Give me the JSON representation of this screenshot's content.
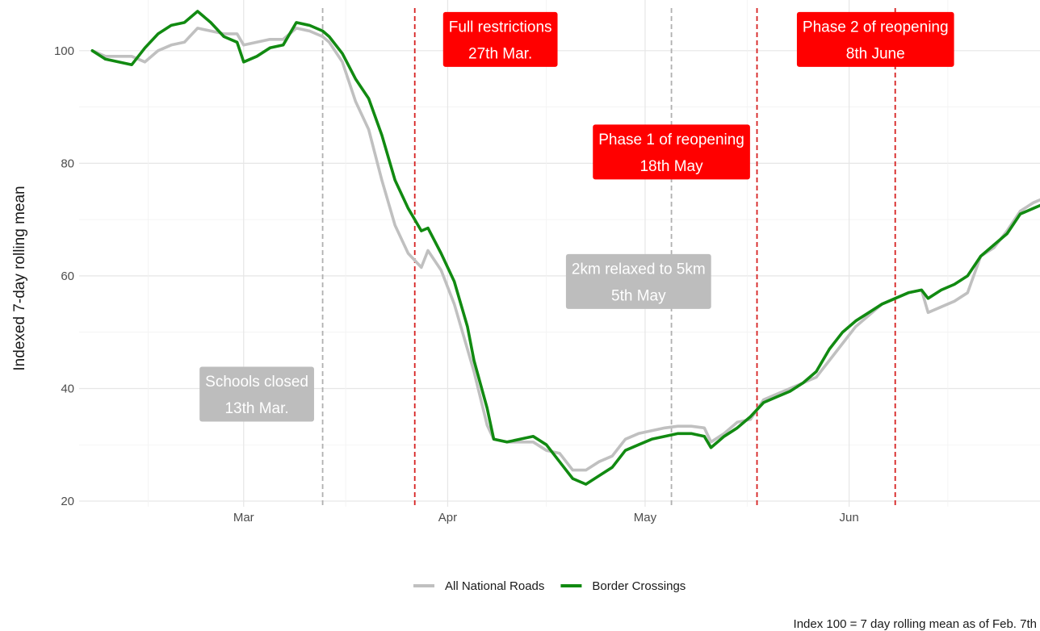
{
  "chart_data": {
    "type": "line",
    "title": "",
    "xlabel": "",
    "ylabel": "Indexed 7-day rolling mean",
    "caption": "Index 100 = 7 day rolling mean as of Feb. 7th",
    "xlim": [
      "2020-02-05",
      "2020-06-30"
    ],
    "ylim": [
      19,
      109
    ],
    "y_ticks": [
      20,
      40,
      60,
      80,
      100
    ],
    "x_ticks": [
      {
        "date": "2020-03-01",
        "label": "Mar"
      },
      {
        "date": "2020-04-01",
        "label": "Apr"
      },
      {
        "date": "2020-05-01",
        "label": "May"
      },
      {
        "date": "2020-06-01",
        "label": "Jun"
      }
    ],
    "grid": true,
    "legend_position": "bottom",
    "series": [
      {
        "name": "All National Roads",
        "color": "#c0c0c0",
        "points": [
          [
            "2020-02-07",
            100
          ],
          [
            "2020-02-09",
            99
          ],
          [
            "2020-02-11",
            99
          ],
          [
            "2020-02-13",
            99
          ],
          [
            "2020-02-15",
            98
          ],
          [
            "2020-02-17",
            100
          ],
          [
            "2020-02-19",
            101
          ],
          [
            "2020-02-21",
            101.5
          ],
          [
            "2020-02-23",
            104
          ],
          [
            "2020-02-25",
            103.5
          ],
          [
            "2020-02-27",
            103
          ],
          [
            "2020-02-29",
            103
          ],
          [
            "2020-03-01",
            101
          ],
          [
            "2020-03-03",
            101.5
          ],
          [
            "2020-03-05",
            102
          ],
          [
            "2020-03-07",
            102
          ],
          [
            "2020-03-09",
            104
          ],
          [
            "2020-03-11",
            103.5
          ],
          [
            "2020-03-13",
            102.5
          ],
          [
            "2020-03-14",
            101.5
          ],
          [
            "2020-03-16",
            98
          ],
          [
            "2020-03-18",
            91
          ],
          [
            "2020-03-20",
            86
          ],
          [
            "2020-03-22",
            77
          ],
          [
            "2020-03-24",
            69
          ],
          [
            "2020-03-26",
            64
          ],
          [
            "2020-03-28",
            61.5
          ],
          [
            "2020-03-29",
            64.5
          ],
          [
            "2020-03-31",
            61
          ],
          [
            "2020-04-02",
            55
          ],
          [
            "2020-04-04",
            47
          ],
          [
            "2020-04-05",
            43
          ],
          [
            "2020-04-07",
            33.5
          ],
          [
            "2020-04-08",
            31
          ],
          [
            "2020-04-10",
            30.5
          ],
          [
            "2020-04-12",
            30.5
          ],
          [
            "2020-04-14",
            30.5
          ],
          [
            "2020-04-16",
            29
          ],
          [
            "2020-04-18",
            28.5
          ],
          [
            "2020-04-20",
            25.5
          ],
          [
            "2020-04-22",
            25.5
          ],
          [
            "2020-04-24",
            27
          ],
          [
            "2020-04-26",
            28
          ],
          [
            "2020-04-28",
            31
          ],
          [
            "2020-04-30",
            32
          ],
          [
            "2020-05-02",
            32.5
          ],
          [
            "2020-05-04",
            33
          ],
          [
            "2020-05-06",
            33.3
          ],
          [
            "2020-05-08",
            33.3
          ],
          [
            "2020-05-10",
            33
          ],
          [
            "2020-05-11",
            30.5
          ],
          [
            "2020-05-13",
            32
          ],
          [
            "2020-05-15",
            34
          ],
          [
            "2020-05-17",
            34.5
          ],
          [
            "2020-05-19",
            38
          ],
          [
            "2020-05-21",
            39
          ],
          [
            "2020-05-23",
            40
          ],
          [
            "2020-05-25",
            41
          ],
          [
            "2020-05-27",
            42
          ],
          [
            "2020-05-29",
            45
          ],
          [
            "2020-05-31",
            48
          ],
          [
            "2020-06-02",
            51
          ],
          [
            "2020-06-04",
            53
          ],
          [
            "2020-06-06",
            55
          ],
          [
            "2020-06-08",
            56
          ],
          [
            "2020-06-10",
            57
          ],
          [
            "2020-06-12",
            57.5
          ],
          [
            "2020-06-13",
            53.5
          ],
          [
            "2020-06-15",
            54.5
          ],
          [
            "2020-06-17",
            55.5
          ],
          [
            "2020-06-19",
            57
          ],
          [
            "2020-06-21",
            63.5
          ],
          [
            "2020-06-23",
            65
          ],
          [
            "2020-06-25",
            68
          ],
          [
            "2020-06-27",
            71.5
          ],
          [
            "2020-06-29",
            73
          ],
          [
            "2020-07-01",
            74
          ]
        ]
      },
      {
        "name": "Border Crossings",
        "color": "#118a11",
        "points": [
          [
            "2020-02-07",
            100
          ],
          [
            "2020-02-09",
            98.5
          ],
          [
            "2020-02-11",
            98
          ],
          [
            "2020-02-13",
            97.5
          ],
          [
            "2020-02-15",
            100.5
          ],
          [
            "2020-02-17",
            103
          ],
          [
            "2020-02-19",
            104.5
          ],
          [
            "2020-02-21",
            105
          ],
          [
            "2020-02-23",
            107
          ],
          [
            "2020-02-25",
            105
          ],
          [
            "2020-02-27",
            102.5
          ],
          [
            "2020-02-29",
            101.5
          ],
          [
            "2020-03-01",
            98
          ],
          [
            "2020-03-03",
            99
          ],
          [
            "2020-03-05",
            100.5
          ],
          [
            "2020-03-07",
            101
          ],
          [
            "2020-03-09",
            105
          ],
          [
            "2020-03-11",
            104.5
          ],
          [
            "2020-03-13",
            103.5
          ],
          [
            "2020-03-14",
            102.5
          ],
          [
            "2020-03-16",
            99.5
          ],
          [
            "2020-03-18",
            95
          ],
          [
            "2020-03-20",
            91.5
          ],
          [
            "2020-03-22",
            85
          ],
          [
            "2020-03-24",
            77
          ],
          [
            "2020-03-26",
            72
          ],
          [
            "2020-03-28",
            68
          ],
          [
            "2020-03-29",
            68.5
          ],
          [
            "2020-03-31",
            64
          ],
          [
            "2020-04-02",
            59
          ],
          [
            "2020-04-04",
            51
          ],
          [
            "2020-04-05",
            45
          ],
          [
            "2020-04-07",
            36.5
          ],
          [
            "2020-04-08",
            31
          ],
          [
            "2020-04-10",
            30.5
          ],
          [
            "2020-04-12",
            31
          ],
          [
            "2020-04-14",
            31.5
          ],
          [
            "2020-04-16",
            30
          ],
          [
            "2020-04-18",
            27
          ],
          [
            "2020-04-20",
            24
          ],
          [
            "2020-04-22",
            23
          ],
          [
            "2020-04-24",
            24.5
          ],
          [
            "2020-04-26",
            26
          ],
          [
            "2020-04-28",
            29
          ],
          [
            "2020-04-30",
            30
          ],
          [
            "2020-05-02",
            31
          ],
          [
            "2020-05-04",
            31.5
          ],
          [
            "2020-05-06",
            32
          ],
          [
            "2020-05-08",
            32
          ],
          [
            "2020-05-10",
            31.5
          ],
          [
            "2020-05-11",
            29.5
          ],
          [
            "2020-05-13",
            31.5
          ],
          [
            "2020-05-15",
            33
          ],
          [
            "2020-05-17",
            35
          ],
          [
            "2020-05-19",
            37.5
          ],
          [
            "2020-05-21",
            38.5
          ],
          [
            "2020-05-23",
            39.5
          ],
          [
            "2020-05-25",
            41
          ],
          [
            "2020-05-27",
            43
          ],
          [
            "2020-05-29",
            47
          ],
          [
            "2020-05-31",
            50
          ],
          [
            "2020-06-02",
            52
          ],
          [
            "2020-06-04",
            53.5
          ],
          [
            "2020-06-06",
            55
          ],
          [
            "2020-06-08",
            56
          ],
          [
            "2020-06-10",
            57
          ],
          [
            "2020-06-12",
            57.5
          ],
          [
            "2020-06-13",
            56
          ],
          [
            "2020-06-15",
            57.5
          ],
          [
            "2020-06-17",
            58.5
          ],
          [
            "2020-06-19",
            60
          ],
          [
            "2020-06-21",
            63.5
          ],
          [
            "2020-06-23",
            65.5
          ],
          [
            "2020-06-25",
            67.5
          ],
          [
            "2020-06-27",
            71
          ],
          [
            "2020-06-29",
            72
          ],
          [
            "2020-07-01",
            73
          ]
        ]
      }
    ],
    "vlines": [
      {
        "date": "2020-03-13",
        "color": "#b0b0b0",
        "style": "dashed"
      },
      {
        "date": "2020-03-27",
        "color": "#d62020",
        "style": "dashed"
      },
      {
        "date": "2020-05-05",
        "color": "#b0b0b0",
        "style": "dashed"
      },
      {
        "date": "2020-05-18",
        "color": "#d62020",
        "style": "dashed"
      },
      {
        "date": "2020-06-08",
        "color": "#d62020",
        "style": "dashed"
      }
    ],
    "annotations": [
      {
        "lines": [
          "Schools closed",
          "13th Mar."
        ],
        "date": "2020-03-03",
        "y": 39,
        "fill": "#bdbdbd"
      },
      {
        "lines": [
          "Full restrictions",
          "27th Mar."
        ],
        "date": "2020-04-09",
        "y": 102,
        "fill": "#ff0000"
      },
      {
        "lines": [
          "2km relaxed to 5km",
          "5th May"
        ],
        "date": "2020-04-30",
        "y": 59,
        "fill": "#bdbdbd"
      },
      {
        "lines": [
          "Phase 1 of reopening",
          "18th May"
        ],
        "date": "2020-05-05",
        "y": 82,
        "fill": "#ff0000"
      },
      {
        "lines": [
          "Phase 2 of reopening",
          "8th June"
        ],
        "date": "2020-06-05",
        "y": 102,
        "fill": "#ff0000"
      }
    ]
  }
}
